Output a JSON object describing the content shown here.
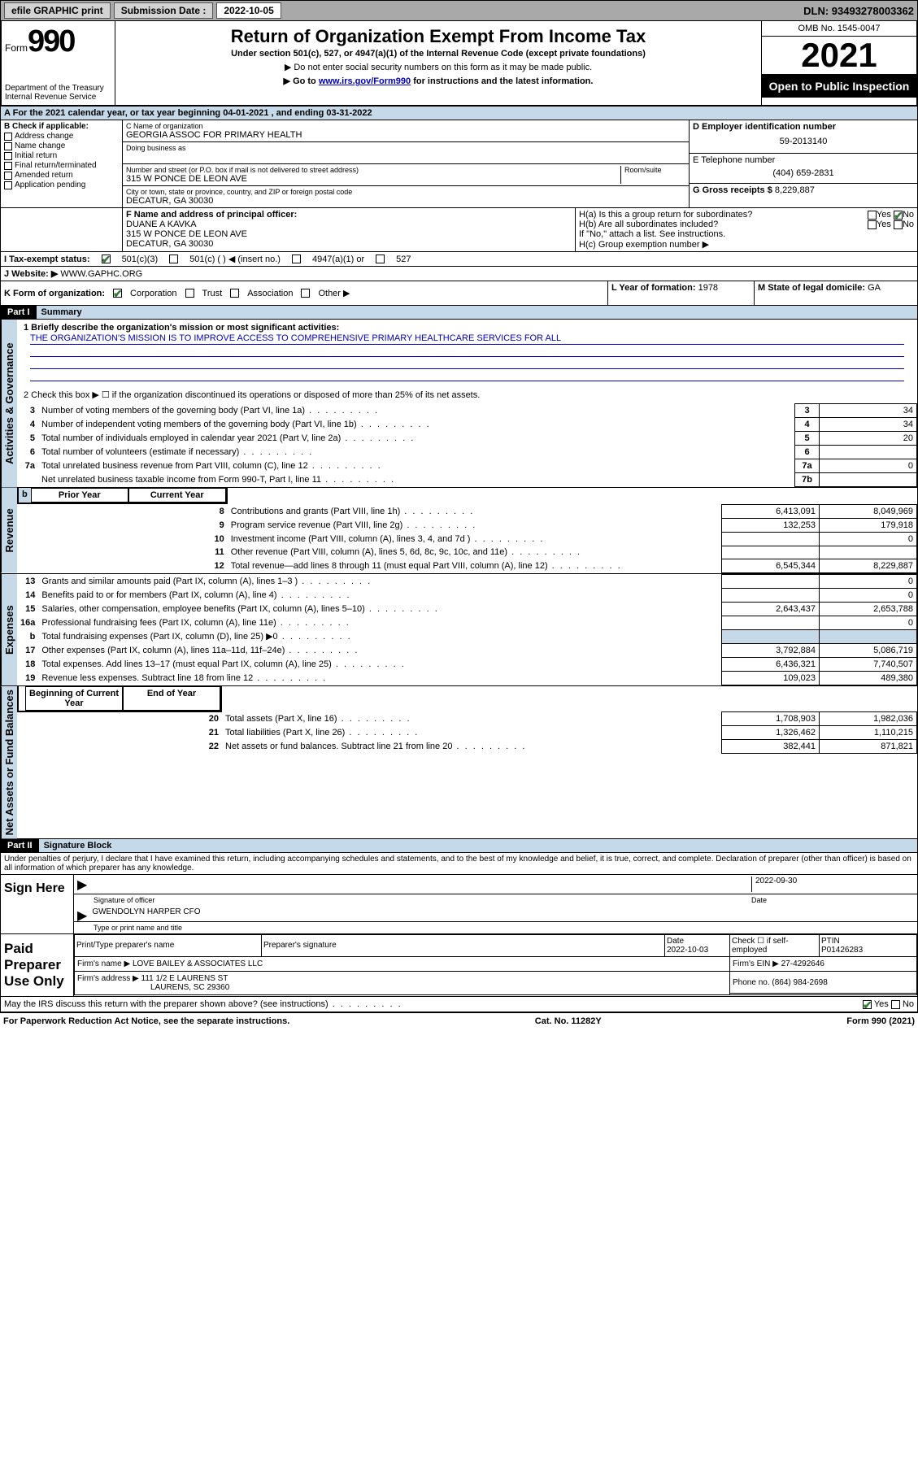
{
  "topbar": {
    "efile": "efile GRAPHIC print",
    "sublabel": "Submission Date :",
    "subdate": "2022-10-05",
    "dln": "DLN: 93493278003362"
  },
  "header": {
    "form_word": "Form",
    "form_num": "990",
    "title": "Return of Organization Exempt From Income Tax",
    "sub1": "Under section 501(c), 527, or 4947(a)(1) of the Internal Revenue Code (except private foundations)",
    "sub2": "▶ Do not enter social security numbers on this form as it may be made public.",
    "sub3a": "▶ Go to ",
    "sub3link": "www.irs.gov/Form990",
    "sub3b": " for instructions and the latest information.",
    "dept": "Department of the Treasury\nInternal Revenue Service",
    "omb": "OMB No. 1545-0047",
    "year": "2021",
    "open": "Open to Public Inspection"
  },
  "calyear": "For the 2021 calendar year, or tax year beginning 04-01-2021   , and ending 03-31-2022",
  "B": {
    "label": "B Check if applicable:",
    "items": [
      "Address change",
      "Name change",
      "Initial return",
      "Final return/terminated",
      "Amended return",
      "Application pending"
    ]
  },
  "C": {
    "name_label": "C Name of organization",
    "name": "GEORGIA ASSOC FOR PRIMARY HEALTH",
    "dba_label": "Doing business as",
    "street_label": "Number and street (or P.O. box if mail is not delivered to street address)",
    "room_label": "Room/suite",
    "street": "315 W PONCE DE LEON AVE",
    "city_label": "City or town, state or province, country, and ZIP or foreign postal code",
    "city": "DECATUR, GA  30030"
  },
  "D": {
    "label": "D Employer identification number",
    "val": "59-2013140"
  },
  "E": {
    "label": "E Telephone number",
    "val": "(404) 659-2831"
  },
  "G": {
    "label": "G Gross receipts $",
    "val": "8,229,887"
  },
  "F": {
    "label": "F  Name and address of principal officer:",
    "name": "DUANE A KAVKA",
    "addr1": "315 W PONCE DE LEON AVE",
    "addr2": "DECATUR, GA  30030"
  },
  "H": {
    "a": "H(a)  Is this a group return for subordinates?",
    "a_yes": "Yes",
    "a_no": "No",
    "b": "H(b)  Are all subordinates included?",
    "b_yes": "Yes",
    "b_no": "No",
    "b_note": "If \"No,\" attach a list. See instructions.",
    "c": "H(c)  Group exemption number ▶"
  },
  "I": {
    "label": "I    Tax-exempt status:",
    "c501c3": "501(c)(3)",
    "c501c": "501(c) (   ) ◀ (insert no.)",
    "c4947": "4947(a)(1) or",
    "c527": "527"
  },
  "J": {
    "label": "J    Website: ▶",
    "val": "WWW.GAPHC.ORG"
  },
  "K": {
    "label": "K Form of organization:",
    "corp": "Corporation",
    "trust": "Trust",
    "assoc": "Association",
    "other": "Other ▶"
  },
  "L": {
    "label": "L Year of formation:",
    "val": "1978"
  },
  "M": {
    "label": "M State of legal domicile:",
    "val": "GA"
  },
  "part1": {
    "bar": "Part I",
    "title": "Summary"
  },
  "summary": {
    "l1a": "1  Briefly describe the organization's mission or most significant activities:",
    "l1b": "THE ORGANIZATION'S MISSION IS TO IMPROVE ACCESS TO COMPREHENSIVE PRIMARY HEALTHCARE SERVICES FOR ALL",
    "l2": "2   Check this box ▶ ☐  if the organization discontinued its operations or disposed of more than 25% of its net assets.",
    "rows": [
      {
        "n": "3",
        "t": "Number of voting members of the governing body (Part VI, line 1a)",
        "box": "3",
        "v": "34"
      },
      {
        "n": "4",
        "t": "Number of independent voting members of the governing body (Part VI, line 1b)",
        "box": "4",
        "v": "34"
      },
      {
        "n": "5",
        "t": "Total number of individuals employed in calendar year 2021 (Part V, line 2a)",
        "box": "5",
        "v": "20"
      },
      {
        "n": "6",
        "t": "Total number of volunteers (estimate if necessary)",
        "box": "6",
        "v": ""
      },
      {
        "n": "7a",
        "t": "Total unrelated business revenue from Part VIII, column (C), line 12",
        "box": "7a",
        "v": "0"
      },
      {
        "n": "",
        "t": "Net unrelated business taxable income from Form 990-T, Part I, line 11",
        "box": "7b",
        "v": ""
      }
    ],
    "colhdr_prior": "Prior Year",
    "colhdr_curr": "Current Year"
  },
  "revenue": [
    {
      "n": "8",
      "t": "Contributions and grants (Part VIII, line 1h)",
      "p": "6,413,091",
      "c": "8,049,969"
    },
    {
      "n": "9",
      "t": "Program service revenue (Part VIII, line 2g)",
      "p": "132,253",
      "c": "179,918"
    },
    {
      "n": "10",
      "t": "Investment income (Part VIII, column (A), lines 3, 4, and 7d )",
      "p": "",
      "c": "0"
    },
    {
      "n": "11",
      "t": "Other revenue (Part VIII, column (A), lines 5, 6d, 8c, 9c, 10c, and 11e)",
      "p": "",
      "c": ""
    },
    {
      "n": "12",
      "t": "Total revenue—add lines 8 through 11 (must equal Part VIII, column (A), line 12)",
      "p": "6,545,344",
      "c": "8,229,887"
    }
  ],
  "expenses": [
    {
      "n": "13",
      "t": "Grants and similar amounts paid (Part IX, column (A), lines 1–3 )",
      "p": "",
      "c": "0"
    },
    {
      "n": "14",
      "t": "Benefits paid to or for members (Part IX, column (A), line 4)",
      "p": "",
      "c": "0"
    },
    {
      "n": "15",
      "t": "Salaries, other compensation, employee benefits (Part IX, column (A), lines 5–10)",
      "p": "2,643,437",
      "c": "2,653,788"
    },
    {
      "n": "16a",
      "t": "Professional fundraising fees (Part IX, column (A), line 11e)",
      "p": "",
      "c": "0"
    },
    {
      "n": "b",
      "t": "Total fundraising expenses (Part IX, column (D), line 25) ▶0",
      "p": "shaded",
      "c": "shaded"
    },
    {
      "n": "17",
      "t": "Other expenses (Part IX, column (A), lines 11a–11d, 11f–24e)",
      "p": "3,792,884",
      "c": "5,086,719"
    },
    {
      "n": "18",
      "t": "Total expenses. Add lines 13–17 (must equal Part IX, column (A), line 25)",
      "p": "6,436,321",
      "c": "7,740,507"
    },
    {
      "n": "19",
      "t": "Revenue less expenses. Subtract line 18 from line 12",
      "p": "109,023",
      "c": "489,380"
    }
  ],
  "netassets_hdr": {
    "p": "Beginning of Current Year",
    "c": "End of Year"
  },
  "netassets": [
    {
      "n": "20",
      "t": "Total assets (Part X, line 16)",
      "p": "1,708,903",
      "c": "1,982,036"
    },
    {
      "n": "21",
      "t": "Total liabilities (Part X, line 26)",
      "p": "1,326,462",
      "c": "1,110,215"
    },
    {
      "n": "22",
      "t": "Net assets or fund balances. Subtract line 21 from line 20",
      "p": "382,441",
      "c": "871,821"
    }
  ],
  "part2": {
    "bar": "Part II",
    "title": "Signature Block"
  },
  "penalties": "Under penalties of perjury, I declare that I have examined this return, including accompanying schedules and statements, and to the best of my knowledge and belief, it is true, correct, and complete. Declaration of preparer (other than officer) is based on all information of which preparer has any knowledge.",
  "sign": {
    "here": "Sign Here",
    "sig_officer": "Signature of officer",
    "date": "Date",
    "sigdate": "2022-09-30",
    "name_title": "GWENDOLYN HARPER CFO",
    "type_name": "Type or print name and title"
  },
  "paid": {
    "label": "Paid Preparer Use Only",
    "h_print": "Print/Type preparer's name",
    "h_sig": "Preparer's signature",
    "h_date": "Date",
    "date": "2022-10-03",
    "h_check": "Check ☐ if self-employed",
    "h_ptin": "PTIN",
    "ptin": "P01426283",
    "firm_label": "Firm's name    ▶",
    "firm": "LOVE BAILEY & ASSOCIATES LLC",
    "ein_label": "Firm's EIN ▶",
    "ein": "27-4292646",
    "addr_label": "Firm's address ▶",
    "addr1": "111 1/2 E LAURENS ST",
    "addr2": "LAURENS, SC  29360",
    "phone_label": "Phone no.",
    "phone": "(864) 984-2698"
  },
  "discuss": {
    "q": "May the IRS discuss this return with the preparer shown above? (see instructions)",
    "yes": "Yes",
    "no": "No"
  },
  "footer": {
    "l": "For Paperwork Reduction Act Notice, see the separate instructions.",
    "m": "Cat. No. 11282Y",
    "r": "Form 990 (2021)"
  },
  "sidelabels": {
    "s1": "Activities & Governance",
    "s2": "Revenue",
    "s3": "Expenses",
    "s4": "Net Assets or Fund Balances"
  }
}
